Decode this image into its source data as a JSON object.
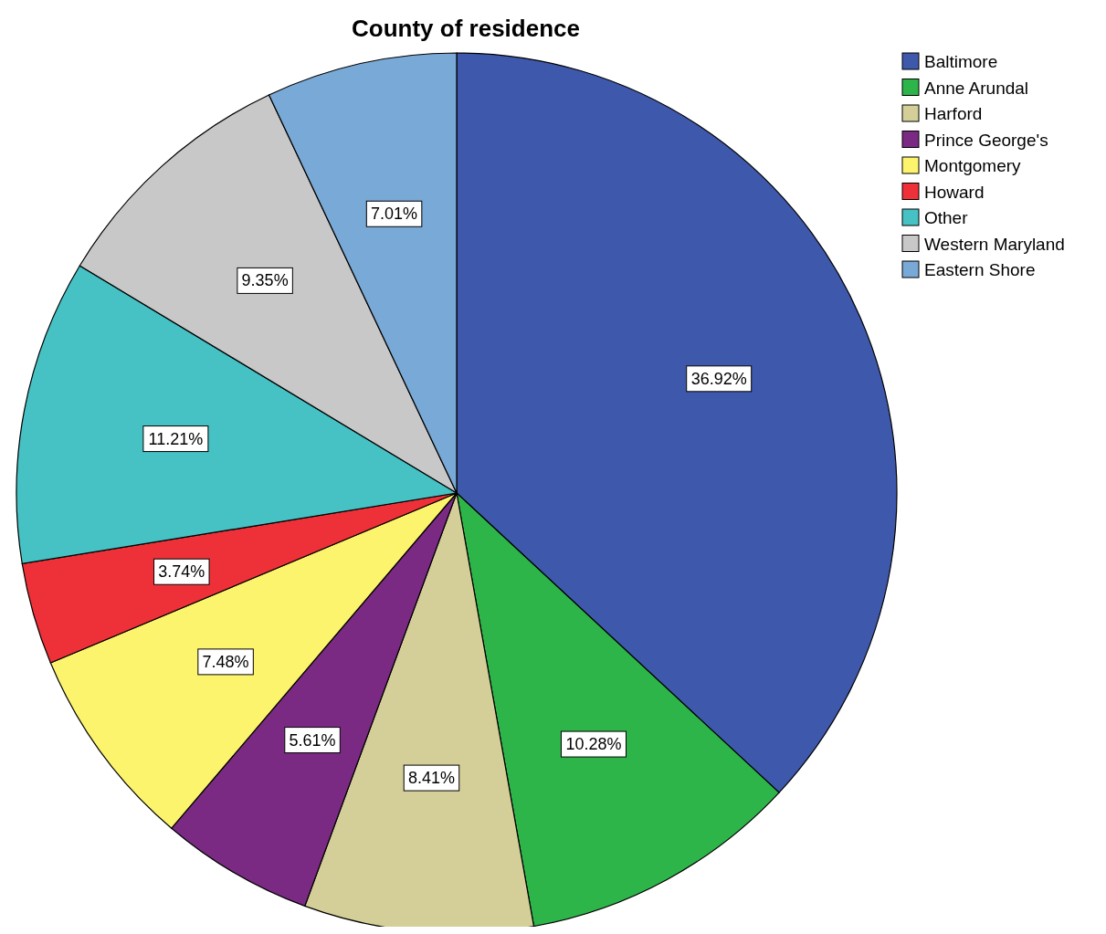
{
  "chart_data": {
    "type": "pie",
    "title": "County of residence",
    "categories": [
      "Baltimore",
      "Anne Arundal",
      "Harford",
      "Prince George's",
      "Montgomery",
      "Howard",
      "Other",
      "Western Maryland",
      "Eastern Shore"
    ],
    "values": [
      36.92,
      10.28,
      8.41,
      5.61,
      7.48,
      3.74,
      11.21,
      9.35,
      7.01
    ],
    "value_labels": [
      "36.92%",
      "10.28%",
      "8.41%",
      "5.61%",
      "7.48%",
      "3.74%",
      "11.21%",
      "9.35%",
      "7.01%"
    ],
    "colors": [
      "#3e58ac",
      "#2db54a",
      "#d4cf98",
      "#7b2a84",
      "#fcf46c",
      "#ee3138",
      "#46c1c4",
      "#c8c8c8",
      "#79a9d6"
    ],
    "legend": "top right"
  }
}
